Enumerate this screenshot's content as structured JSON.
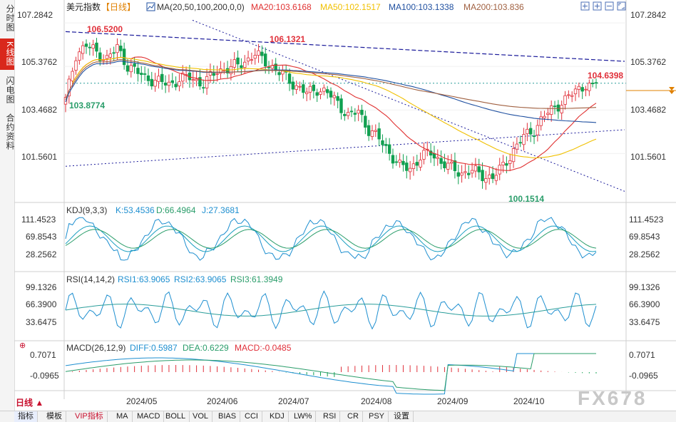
{
  "side_tabs": [
    "分时图",
    "K线图",
    "闪电图",
    "合约资料"
  ],
  "period_button": "日线 ▲",
  "header": {
    "title": "美元指数",
    "period": "【日线】",
    "ma_label": "MA(20,50,100,200,0,0)",
    "ma20": "MA20:103.6168",
    "ma50": "MA50:102.1517",
    "ma100": "MA100:103.1338",
    "ma200": "MA200:103.836"
  },
  "price_axis": [
    "107.2842",
    "105.3762",
    "103.4682",
    "101.5601"
  ],
  "annotations": {
    "high1": "106.5200",
    "high2": "106.1321",
    "low1": "103.8774",
    "low2": "100.1514",
    "last": "104.6398"
  },
  "kdj": {
    "label": "KDJ(9,3,3)",
    "k": "K:53.4536",
    "d": "D:66.4964",
    "j": "J:27.3681",
    "axis": [
      "111.4523",
      "69.8543",
      "28.2562"
    ]
  },
  "rsi": {
    "label": "RSI(14,14,2)",
    "rsi1": "RSI1:63.9065",
    "rsi2": "RSI2:63.9065",
    "rsi3": "RSI3:61.3949",
    "axis": [
      "99.1326",
      "66.3900",
      "33.6475"
    ]
  },
  "macd": {
    "label": "MACD(26,12,9)",
    "diff": "DIFF:0.5987",
    "dea": "DEA:0.6229",
    "macd": "MACD:-0.0485",
    "axis": [
      "0.7071",
      "-0.0965"
    ]
  },
  "months": [
    "2024/05",
    "2024/06",
    "2024/07",
    "2024/08",
    "2024/09",
    "2024/10"
  ],
  "watermark": "FX678",
  "toolbar": [
    "指标",
    "模板",
    "VIP指标",
    "MA",
    "MACD",
    "BOLL",
    "VOL",
    "BIAS",
    "CCI",
    "KDJ",
    "LW%",
    "RSI",
    "CR",
    "PSY",
    "设置"
  ],
  "colors": {
    "up": "#e0303a",
    "down": "#10a050",
    "ma20": "#e03030",
    "ma50": "#f0c000",
    "ma100": "#2050a0",
    "ma200": "#a06040",
    "guide": "#1a1a9a"
  },
  "chart_data": {
    "type": "candlestick",
    "title": "美元指数 日线",
    "ylim": [
      99.6,
      107.6
    ],
    "start": "2024-04-15",
    "end": "2024-10-24",
    "close_keypoints": [
      [
        0,
        103.9
      ],
      [
        3,
        105.9
      ],
      [
        6,
        106.3
      ],
      [
        9,
        106.0
      ],
      [
        12,
        105.7
      ],
      [
        15,
        106.2
      ],
      [
        18,
        105.4
      ],
      [
        20,
        105.2
      ],
      [
        23,
        104.9
      ],
      [
        27,
        104.7
      ],
      [
        30,
        104.6
      ],
      [
        33,
        104.8
      ],
      [
        36,
        104.9
      ],
      [
        40,
        104.6
      ],
      [
        44,
        105.2
      ],
      [
        48,
        105.3
      ],
      [
        52,
        105.6
      ],
      [
        55,
        105.9
      ],
      [
        58,
        105.6
      ],
      [
        61,
        105.2
      ],
      [
        64,
        104.9
      ],
      [
        67,
        104.5
      ],
      [
        70,
        104.2
      ],
      [
        73,
        104.4
      ],
      [
        76,
        104.2
      ],
      [
        79,
        103.8
      ],
      [
        82,
        103.2
      ],
      [
        85,
        103.4
      ],
      [
        88,
        102.6
      ],
      [
        91,
        102.2
      ],
      [
        94,
        101.6
      ],
      [
        97,
        101.0
      ],
      [
        100,
        100.9
      ],
      [
        103,
        101.4
      ],
      [
        106,
        101.6
      ],
      [
        109,
        101.2
      ],
      [
        112,
        100.9
      ],
      [
        115,
        100.7
      ],
      [
        118,
        100.8
      ],
      [
        121,
        100.6
      ],
      [
        124,
        100.5
      ],
      [
        127,
        101.0
      ],
      [
        130,
        101.7
      ],
      [
        133,
        102.3
      ],
      [
        136,
        102.6
      ],
      [
        139,
        103.2
      ],
      [
        142,
        103.6
      ],
      [
        145,
        103.9
      ],
      [
        148,
        104.3
      ],
      [
        151,
        104.6
      ],
      [
        153,
        104.4
      ],
      [
        154,
        104.64
      ]
    ],
    "highlights": {
      "high": 106.52,
      "high2": 106.1321,
      "low": 103.8774,
      "low2": 100.1514,
      "last": 104.6398
    },
    "ma_last": {
      "ma20": 103.6168,
      "ma50": 102.1517,
      "ma100": 103.1338,
      "ma200": 103.836
    },
    "indicators": {
      "kdj": {
        "K": 53.4536,
        "D": 66.4964,
        "J": 27.3681
      },
      "rsi": {
        "RSI1": 63.9065,
        "RSI2": 63.9065,
        "RSI3": 61.3949
      },
      "macd": {
        "DIFF": 0.5987,
        "DEA": 0.6229,
        "MACD": -0.0485
      }
    }
  }
}
